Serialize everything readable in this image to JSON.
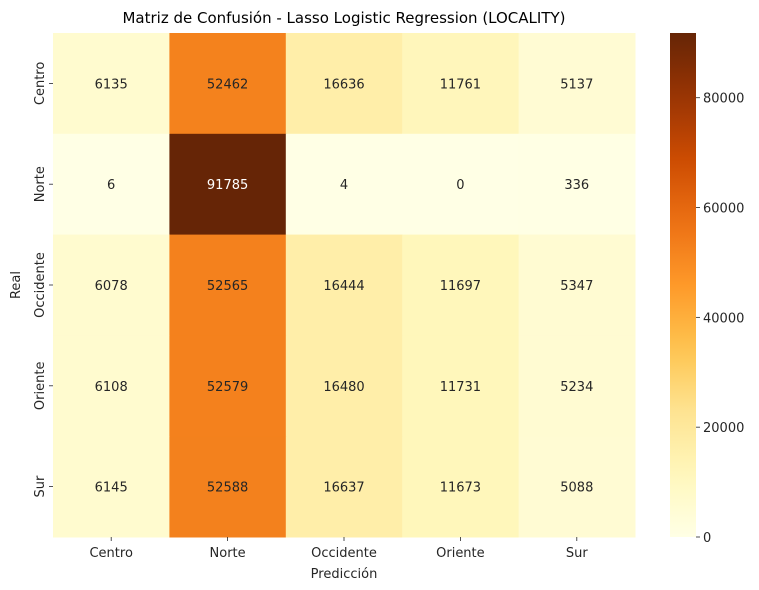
{
  "chart_data": {
    "type": "heatmap",
    "title": "Matriz de Confusión - Lasso Logistic Regression (LOCALITY)",
    "xlabel": "Predicción",
    "ylabel": "Real",
    "x_categories": [
      "Centro",
      "Norte",
      "Occidente",
      "Oriente",
      "Sur"
    ],
    "y_categories": [
      "Centro",
      "Norte",
      "Occidente",
      "Oriente",
      "Sur"
    ],
    "values": [
      [
        6135,
        52462,
        16636,
        11761,
        5137
      ],
      [
        6,
        91785,
        4,
        0,
        336
      ],
      [
        6078,
        52565,
        16444,
        11697,
        5347
      ],
      [
        6108,
        52579,
        16480,
        11731,
        5234
      ],
      [
        6145,
        52588,
        16637,
        11673,
        5088
      ]
    ],
    "colormap": "YlOrBr",
    "vmin": 0,
    "vmax": 91785,
    "colorbar_ticks": [
      0,
      20000,
      40000,
      60000,
      80000
    ],
    "colors": {
      "low": "#ffffe5",
      "high": "#662506"
    }
  }
}
